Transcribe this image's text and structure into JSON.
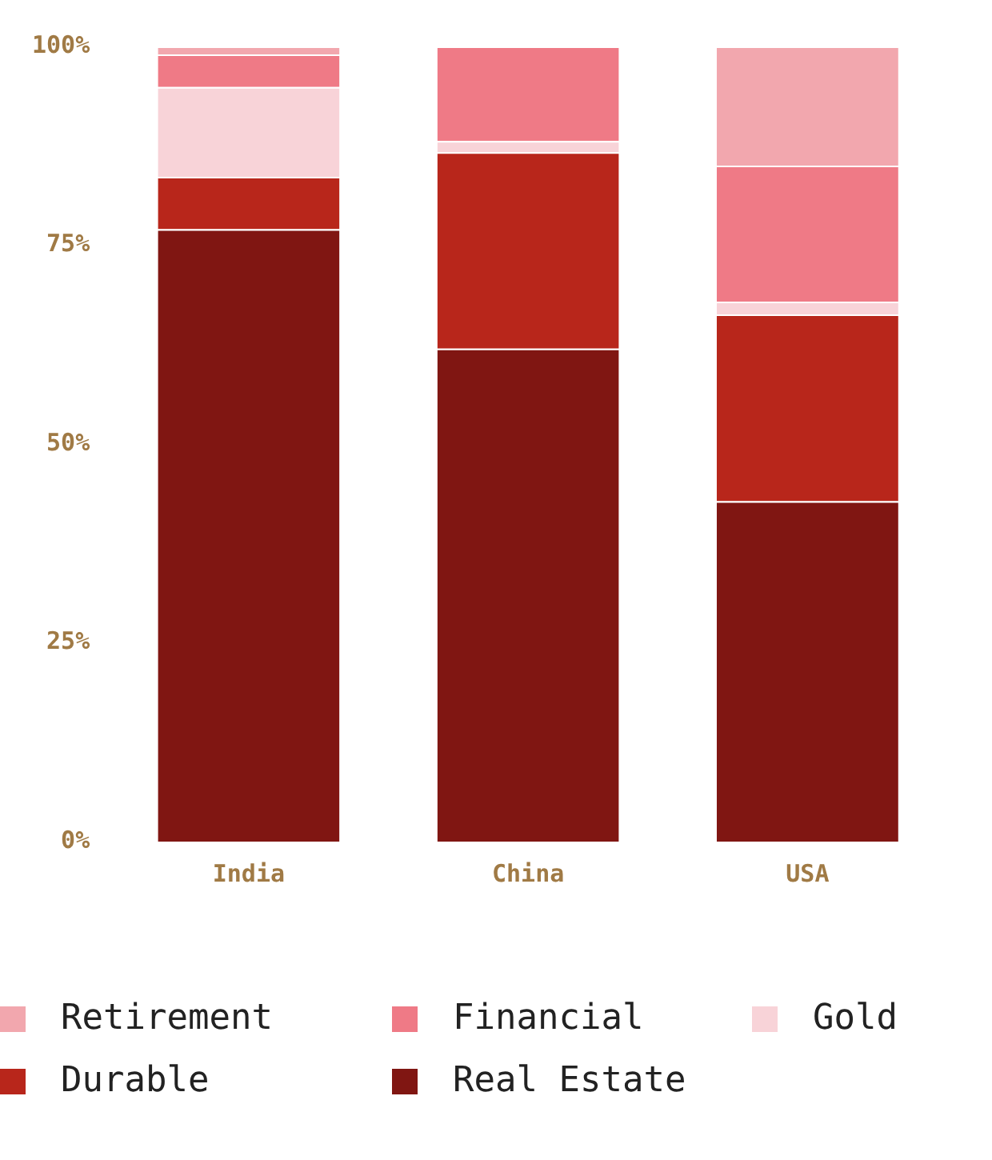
{
  "chart_data": {
    "type": "bar",
    "stacked": true,
    "categories": [
      "India",
      "China",
      "USA"
    ],
    "series": [
      {
        "name": "Real Estate",
        "color": "#801612",
        "values": [
          77.0,
          62.0,
          42.8
        ]
      },
      {
        "name": "Durable",
        "color": "#b8261b",
        "values": [
          6.6,
          24.7,
          23.5
        ]
      },
      {
        "name": "Gold",
        "color": "#f8d3d8",
        "values": [
          11.3,
          1.4,
          1.6
        ]
      },
      {
        "name": "Financial",
        "color": "#ef7a86",
        "values": [
          4.1,
          11.9,
          17.1
        ]
      },
      {
        "name": "Retirement",
        "color": "#f2a7ae",
        "values": [
          1.0,
          0,
          15.0
        ]
      }
    ],
    "ylim": [
      0,
      100
    ],
    "yticks": [
      {
        "value": 0,
        "label": "0%"
      },
      {
        "value": 25,
        "label": "25%"
      },
      {
        "value": 50,
        "label": "50%"
      },
      {
        "value": 75,
        "label": "75%"
      },
      {
        "value": 100,
        "label": "100%"
      }
    ],
    "grid": false,
    "legend": "bottom"
  }
}
